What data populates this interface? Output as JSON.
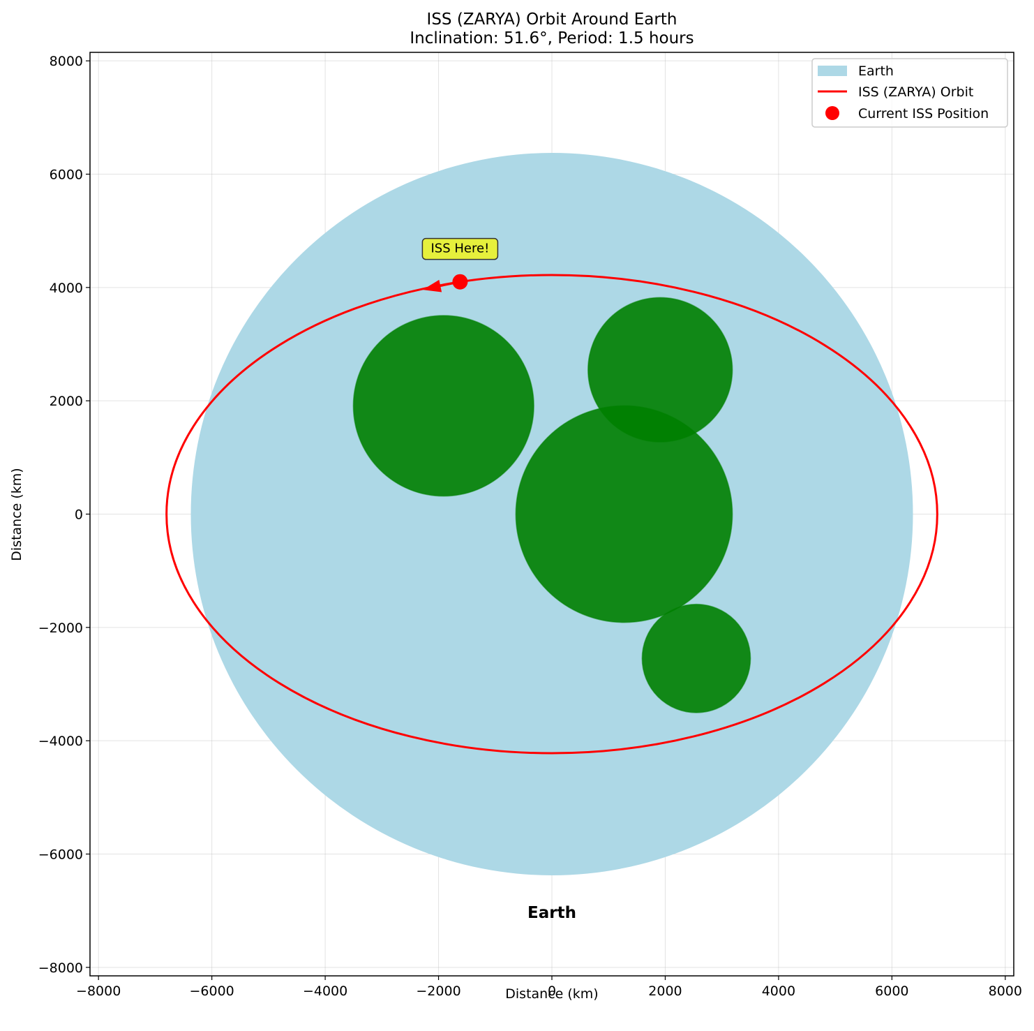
{
  "chart_data": {
    "type": "scatter",
    "title": "ISS (ZARYA) Orbit Around Earth",
    "subtitle": "Inclination: 51.6°, Period: 1.5 hours",
    "xlabel": "Distance (km)",
    "ylabel": "Distance (km)",
    "xlim": [
      -8150,
      8150
    ],
    "ylim": [
      -8150,
      8150
    ],
    "xticks": [
      -8000,
      -6000,
      -4000,
      -2000,
      0,
      2000,
      4000,
      6000,
      8000
    ],
    "yticks": [
      -8000,
      -6000,
      -4000,
      -2000,
      0,
      2000,
      4000,
      6000,
      8000
    ],
    "grid": true,
    "legend_position": "top-right",
    "earth": {
      "name": "Earth",
      "center": [
        0,
        0
      ],
      "radius": 6371,
      "color": "#add8e6"
    },
    "continents": [
      {
        "center": [
          -1911,
          1911
        ],
        "radius": 1593,
        "color": "#008000"
      },
      {
        "center": [
          1911,
          2548
        ],
        "radius": 1274,
        "color": "#008000"
      },
      {
        "center": [
          1274,
          0
        ],
        "radius": 1911,
        "color": "#008000"
      },
      {
        "center": [
          2548,
          -2548
        ],
        "radius": 956,
        "color": "#008000"
      }
    ],
    "orbit": {
      "name": "ISS (ZARYA) Orbit",
      "semi_major_x": 6800,
      "semi_minor_y": 4220,
      "color": "#ff0000"
    },
    "current_position": {
      "name": "Current ISS Position",
      "x": -1620,
      "y": 4100,
      "color": "#ff0000"
    },
    "direction_arrow": {
      "from": [
        -1620,
        4100
      ],
      "to": [
        -2280,
        3960
      ]
    },
    "annotation": {
      "text": "ISS Here!",
      "x": -1620,
      "y": 4680,
      "box_color": "#e6f03c"
    },
    "earth_text": {
      "text": "Earth",
      "x": 0,
      "y": -7050
    },
    "tick_text": {
      "x": [
        "−8000",
        "−6000",
        "−4000",
        "−2000",
        "0",
        "2000",
        "4000",
        "6000",
        "8000"
      ],
      "y": [
        "−8000",
        "−6000",
        "−4000",
        "−2000",
        "0",
        "2000",
        "4000",
        "6000",
        "8000"
      ]
    },
    "legend": [
      "Earth",
      "ISS (ZARYA) Orbit",
      "Current ISS Position"
    ]
  }
}
